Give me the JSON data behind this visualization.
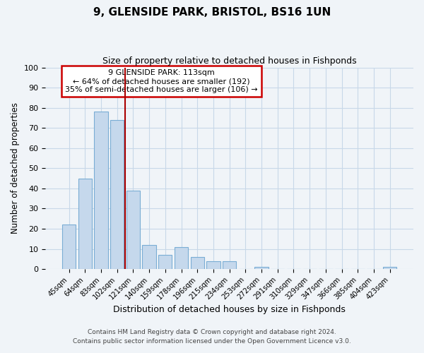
{
  "title": "9, GLENSIDE PARK, BRISTOL, BS16 1UN",
  "subtitle": "Size of property relative to detached houses in Fishponds",
  "xlabel": "Distribution of detached houses by size in Fishponds",
  "ylabel": "Number of detached properties",
  "bar_labels": [
    "45sqm",
    "64sqm",
    "83sqm",
    "102sqm",
    "121sqm",
    "140sqm",
    "159sqm",
    "178sqm",
    "196sqm",
    "215sqm",
    "234sqm",
    "253sqm",
    "272sqm",
    "291sqm",
    "310sqm",
    "329sqm",
    "347sqm",
    "366sqm",
    "385sqm",
    "404sqm",
    "423sqm"
  ],
  "bar_values": [
    22,
    45,
    78,
    74,
    39,
    12,
    7,
    11,
    6,
    4,
    4,
    0,
    1,
    0,
    0,
    0,
    0,
    0,
    0,
    0,
    1
  ],
  "bar_color": "#c5d8ec",
  "bar_edge_color": "#7aadd4",
  "annotation_box_color": "#ffffff",
  "annotation_box_edge_color": "#cc0000",
  "annotation_lines": [
    "9 GLENSIDE PARK: 113sqm",
    "← 64% of detached houses are smaller (192)",
    "35% of semi-detached houses are larger (106) →"
  ],
  "vline_x": 3.5,
  "vline_color": "#aa0000",
  "ylim": [
    0,
    100
  ],
  "yticks": [
    0,
    10,
    20,
    30,
    40,
    50,
    60,
    70,
    80,
    90,
    100
  ],
  "footer_line1": "Contains HM Land Registry data © Crown copyright and database right 2024.",
  "footer_line2": "Contains public sector information licensed under the Open Government Licence v3.0.",
  "background_color": "#f0f4f8",
  "grid_color": "#c8d8e8"
}
